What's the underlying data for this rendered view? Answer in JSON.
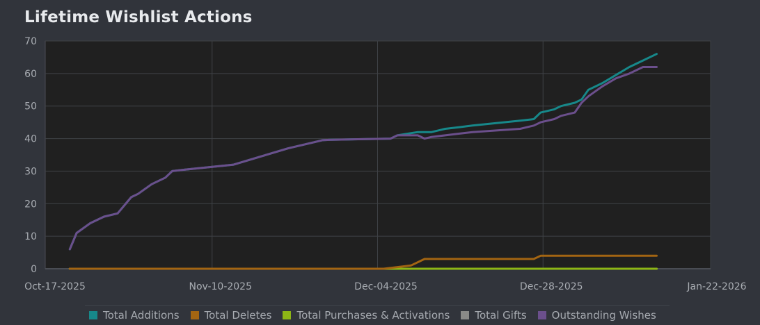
{
  "page": {
    "title": "Lifetime Wishlist Actions"
  },
  "chart_data": {
    "type": "line",
    "title": "Lifetime Wishlist Actions",
    "xlabel": "",
    "ylabel": "",
    "ylim": [
      0,
      70
    ],
    "y_ticks": [
      "0",
      "10",
      "20",
      "30",
      "40",
      "50",
      "60",
      "70"
    ],
    "x_ticks": [
      "Oct-17-2025",
      "Nov-10-2025",
      "Dec-04-2025",
      "Dec-28-2025",
      "Jan-22-2026"
    ],
    "x_range_days": [
      0,
      97
    ],
    "legend_position": "bottom",
    "series": [
      {
        "name": "Total Additions",
        "color": "#17888a",
        "x": [
          0,
          1,
          3,
          5,
          7,
          9,
          10,
          12,
          14,
          15,
          17,
          24,
          28,
          32,
          36,
          37,
          38,
          47,
          48,
          51,
          53,
          55,
          57,
          59,
          66,
          68,
          69,
          71,
          72,
          74,
          75,
          76,
          78,
          80,
          82,
          84,
          86
        ],
        "y": [
          6,
          11,
          14,
          16,
          17,
          22,
          23,
          26,
          28,
          30,
          30.5,
          32,
          34.5,
          37,
          39,
          39.5,
          39.6,
          40,
          41,
          42,
          42,
          43,
          43.5,
          44,
          45.5,
          46,
          48,
          49,
          50,
          51,
          52,
          55,
          57,
          59.5,
          62,
          64,
          66
        ]
      },
      {
        "name": "Total Deletes",
        "color": "#a36512",
        "x": [
          0,
          46,
          50,
          52,
          68,
          69,
          86
        ],
        "y": [
          0,
          0,
          1,
          3,
          3,
          4,
          4
        ]
      },
      {
        "name": "Total Purchases & Activations",
        "color": "#8db615",
        "x": [
          0,
          86
        ],
        "y": [
          0,
          0
        ]
      },
      {
        "name": "Total Gifts",
        "color": "#8a8a88",
        "x": [
          0,
          86
        ],
        "y": [
          0,
          0
        ]
      },
      {
        "name": "Outstanding Wishes",
        "color": "#6b4f8c",
        "x": [
          0,
          1,
          3,
          5,
          7,
          9,
          10,
          12,
          14,
          15,
          17,
          24,
          28,
          32,
          36,
          37,
          38,
          47,
          48,
          51,
          52,
          53,
          55,
          57,
          59,
          66,
          68,
          69,
          71,
          72,
          74,
          75,
          76,
          78,
          80,
          82,
          84,
          86
        ],
        "y": [
          6,
          11,
          14,
          16,
          17,
          22,
          23,
          26,
          28,
          30,
          30.5,
          32,
          34.5,
          37,
          39,
          39.5,
          39.6,
          40,
          41,
          41,
          40,
          40.5,
          41,
          41.5,
          42,
          43,
          44,
          45,
          46,
          47,
          48,
          51,
          53,
          56,
          58.5,
          60,
          62,
          62
        ]
      }
    ]
  }
}
